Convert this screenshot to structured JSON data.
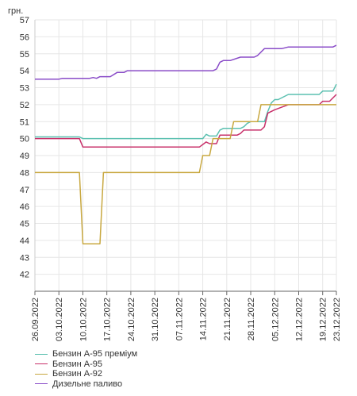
{
  "chart_data": {
    "type": "line",
    "ylabel": "грн.",
    "ylim": [
      41,
      57
    ],
    "yticks": [
      42,
      43,
      44,
      45,
      46,
      47,
      48,
      49,
      50,
      51,
      52,
      53,
      54,
      55,
      56,
      57
    ],
    "grid": true,
    "legend_position": "bottom-left",
    "x_start": "26.09.2022",
    "x_end": "23.12.2022",
    "x_tick_labels": [
      "26.09.2022",
      "03.10.2022",
      "10.10.2022",
      "17.10.2022",
      "24.10.2022",
      "31.10.2022",
      "07.11.2022",
      "14.11.2022",
      "21.11.2022",
      "28.11.2022",
      "05.12.2022",
      "12.12.2022",
      "19.12.2022",
      "23.12.2022"
    ],
    "series": [
      {
        "name": "Бензин А-95 преміум",
        "color": "#5bc0b0",
        "points": [
          [
            "26.09.2022",
            50.1
          ],
          [
            "09.10.2022",
            50.1
          ],
          [
            "10.10.2022",
            50.0
          ],
          [
            "12.11.2022",
            50.0
          ],
          [
            "14.11.2022",
            50.0
          ],
          [
            "15.11.2022",
            50.25
          ],
          [
            "16.11.2022",
            50.15
          ],
          [
            "18.11.2022",
            50.15
          ],
          [
            "19.11.2022",
            50.5
          ],
          [
            "20.11.2022",
            50.6
          ],
          [
            "25.11.2022",
            50.6
          ],
          [
            "26.11.2022",
            50.7
          ],
          [
            "27.11.2022",
            50.9
          ],
          [
            "28.11.2022",
            51.0
          ],
          [
            "02.12.2022",
            51.0
          ],
          [
            "03.12.2022",
            51.6
          ],
          [
            "04.12.2022",
            52.1
          ],
          [
            "05.12.2022",
            52.3
          ],
          [
            "06.12.2022",
            52.3
          ],
          [
            "09.12.2022",
            52.6
          ],
          [
            "18.12.2022",
            52.6
          ],
          [
            "19.12.2022",
            52.8
          ],
          [
            "22.12.2022",
            52.8
          ],
          [
            "23.12.2022",
            53.2
          ]
        ]
      },
      {
        "name": "Бензин А-95",
        "color": "#c8306a",
        "points": [
          [
            "26.09.2022",
            50.0
          ],
          [
            "09.10.2022",
            50.0
          ],
          [
            "10.10.2022",
            49.5
          ],
          [
            "13.11.2022",
            49.5
          ],
          [
            "15.11.2022",
            49.8
          ],
          [
            "16.11.2022",
            49.7
          ],
          [
            "18.11.2022",
            49.7
          ],
          [
            "19.11.2022",
            50.2
          ],
          [
            "24.11.2022",
            50.2
          ],
          [
            "25.11.2022",
            50.3
          ],
          [
            "26.11.2022",
            50.5
          ],
          [
            "01.12.2022",
            50.5
          ],
          [
            "02.12.2022",
            50.7
          ],
          [
            "03.12.2022",
            51.5
          ],
          [
            "05.12.2022",
            51.7
          ],
          [
            "09.12.2022",
            52.0
          ],
          [
            "18.12.2022",
            52.0
          ],
          [
            "19.12.2022",
            52.2
          ],
          [
            "21.12.2022",
            52.2
          ],
          [
            "23.12.2022",
            52.6
          ]
        ]
      },
      {
        "name": "Бензин А-92",
        "color": "#c8a840",
        "points": [
          [
            "26.09.2022",
            48.0
          ],
          [
            "09.10.2022",
            48.0
          ],
          [
            "10.10.2022",
            43.8
          ],
          [
            "15.10.2022",
            43.8
          ],
          [
            "16.10.2022",
            48.0
          ],
          [
            "13.11.2022",
            48.0
          ],
          [
            "14.11.2022",
            49.0
          ],
          [
            "16.11.2022",
            49.0
          ],
          [
            "17.11.2022",
            50.0
          ],
          [
            "22.11.2022",
            50.0
          ],
          [
            "23.11.2022",
            51.0
          ],
          [
            "28.11.2022",
            51.0
          ],
          [
            "30.11.2022",
            51.0
          ],
          [
            "01.12.2022",
            52.0
          ],
          [
            "23.12.2022",
            52.0
          ]
        ]
      },
      {
        "name": "Дизельне паливо",
        "color": "#8a4cc8",
        "points": [
          [
            "26.09.2022",
            53.5
          ],
          [
            "03.10.2022",
            53.5
          ],
          [
            "04.10.2022",
            53.55
          ],
          [
            "12.10.2022",
            53.55
          ],
          [
            "13.10.2022",
            53.6
          ],
          [
            "14.10.2022",
            53.55
          ],
          [
            "15.10.2022",
            53.65
          ],
          [
            "18.10.2022",
            53.65
          ],
          [
            "20.10.2022",
            53.9
          ],
          [
            "22.10.2022",
            53.9
          ],
          [
            "23.10.2022",
            54.0
          ],
          [
            "17.11.2022",
            54.0
          ],
          [
            "18.11.2022",
            54.1
          ],
          [
            "19.11.2022",
            54.5
          ],
          [
            "20.11.2022",
            54.6
          ],
          [
            "22.11.2022",
            54.6
          ],
          [
            "25.11.2022",
            54.8
          ],
          [
            "29.11.2022",
            54.8
          ],
          [
            "30.11.2022",
            54.9
          ],
          [
            "02.12.2022",
            55.3
          ],
          [
            "07.12.2022",
            55.3
          ],
          [
            "09.12.2022",
            55.4
          ],
          [
            "22.12.2022",
            55.4
          ],
          [
            "23.12.2022",
            55.5
          ]
        ]
      }
    ]
  }
}
